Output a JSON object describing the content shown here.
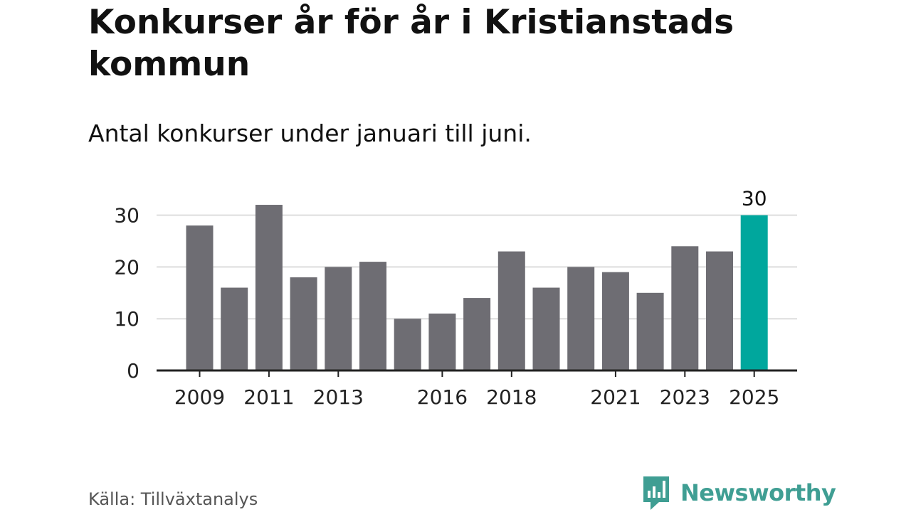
{
  "title": "Konkurser år för år i Kristianstads kommun",
  "subtitle": "Antal konkurser under januari till juni.",
  "source": "Källa: Tillväxtanalys",
  "brand": {
    "name": "Newsworthy",
    "icon": "newsworthy-logo-icon"
  },
  "colors": {
    "bar": "#6e6d73",
    "highlight": "#00a79d",
    "grid": "#dddddd",
    "axis": "#222222",
    "brand": "#3f9e93"
  },
  "chart_data": {
    "type": "bar",
    "categories": [
      "2009",
      "2010",
      "2011",
      "2012",
      "2013",
      "2014",
      "2015",
      "2016",
      "2017",
      "2018",
      "2019",
      "2020",
      "2021",
      "2022",
      "2023",
      "2024",
      "2025"
    ],
    "values": [
      28,
      16,
      32,
      18,
      20,
      21,
      10,
      11,
      14,
      23,
      16,
      20,
      19,
      15,
      24,
      23,
      30
    ],
    "x_tick_labels": [
      "2009",
      "2011",
      "2013",
      "2016",
      "2018",
      "2021",
      "2023",
      "2025"
    ],
    "y_ticks": [
      "0",
      "10",
      "20",
      "30"
    ],
    "ylim": [
      0,
      32
    ],
    "grid": true,
    "highlight_index": 16,
    "data_labels": [
      {
        "index": 16,
        "text": "30"
      }
    ],
    "xlabel": "",
    "ylabel": ""
  }
}
